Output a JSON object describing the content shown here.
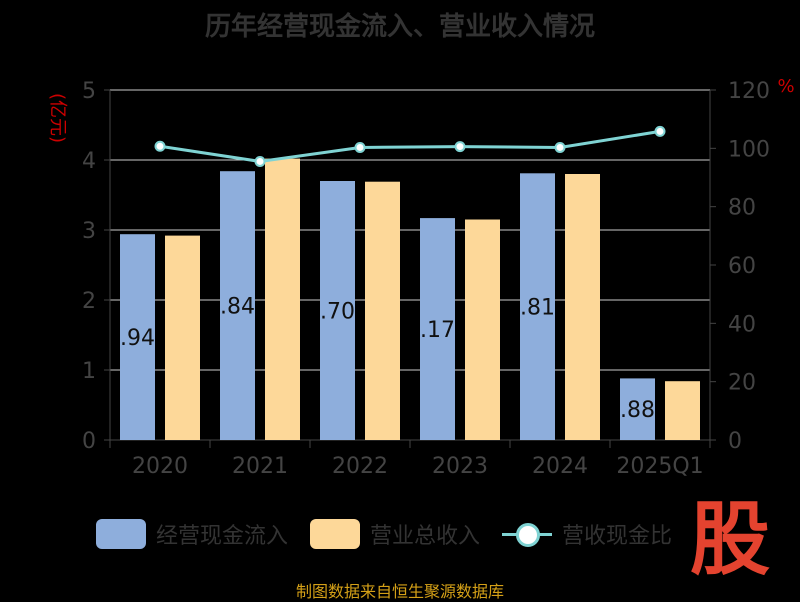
{
  "chart_data": {
    "type": "bar",
    "title": "历年经营现金流入、营业收入情况",
    "categories": [
      "2020",
      "2021",
      "2022",
      "2023",
      "2024",
      "2025Q1"
    ],
    "left_axis": {
      "unit_label": "(亿元)",
      "ylim": [
        0,
        5
      ],
      "ticks": [
        "0",
        "1",
        "2",
        "3",
        "4",
        "5"
      ]
    },
    "right_axis": {
      "unit_label": "%",
      "ylim": [
        0,
        120
      ],
      "ticks": [
        "0",
        "20",
        "40",
        "60",
        "80",
        "100",
        "120"
      ]
    },
    "grid": true,
    "series": [
      {
        "name": "经营现金流入",
        "kind": "bar",
        "axis": "left",
        "color": "#8eaedc",
        "values": [
          2.94,
          3.84,
          3.7,
          3.17,
          3.81,
          0.88
        ],
        "labels": [
          ".94",
          ".84",
          ".70",
          ".17",
          ".81",
          ".88"
        ]
      },
      {
        "name": "营业总收入",
        "kind": "bar",
        "axis": "left",
        "color": "#fdd899",
        "values": [
          2.92,
          4.02,
          3.69,
          3.15,
          3.8,
          0.84
        ]
      },
      {
        "name": "营收现金比",
        "kind": "line",
        "axis": "right",
        "color": "#7fd3d3",
        "values": [
          100.7,
          95.5,
          100.3,
          100.6,
          100.3,
          105.8
        ]
      }
    ],
    "legend_position": "bottom"
  },
  "colors": {
    "background": "#000000",
    "axis_text": "#444444",
    "unit_text": "#cc0000",
    "grid": "#cccccc"
  },
  "footer": {
    "source": "制图数据来自恒生聚源数据库",
    "stamp": "股"
  }
}
